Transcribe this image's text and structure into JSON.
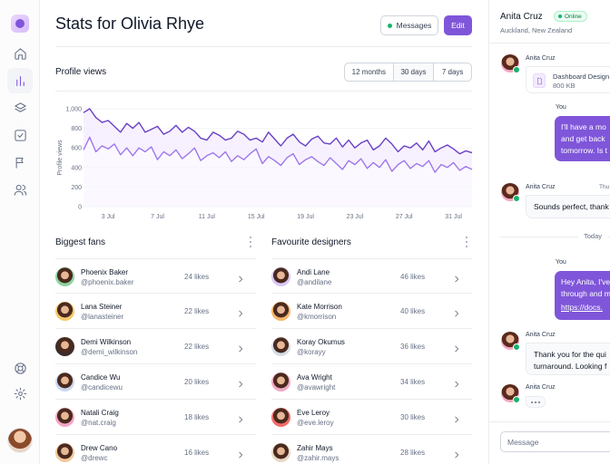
{
  "sidebar": {
    "nav": [
      {
        "icon": "home-icon"
      },
      {
        "icon": "bar-chart-icon",
        "active": true
      },
      {
        "icon": "layers-icon"
      },
      {
        "icon": "check-square-icon"
      },
      {
        "icon": "flag-icon"
      },
      {
        "icon": "users-icon"
      }
    ],
    "bottom": [
      {
        "icon": "life-buoy-icon"
      },
      {
        "icon": "settings-icon"
      }
    ]
  },
  "header": {
    "title": "Stats for Olivia Rhye",
    "messages_label": "Messages",
    "edit_label": "Edit"
  },
  "profile_views": {
    "title": "Profile views",
    "ranges": [
      "12 months",
      "30 days",
      "7 days"
    ],
    "selected_range": "30 days"
  },
  "chart_data": {
    "type": "line",
    "ylabel": "Profile views",
    "ylim": [
      0,
      1000
    ],
    "y_ticks": [
      "0",
      "200",
      "400",
      "600",
      "800",
      "1,000"
    ],
    "x_ticks": [
      "3 Jul",
      "7 Jul",
      "11 Jul",
      "15 Jul",
      "19 Jul",
      "23 Jul",
      "27 Jul",
      "31 Jul"
    ],
    "x_tick_values": [
      3,
      7,
      11,
      15,
      19,
      23,
      27,
      31
    ],
    "x": [
      1,
      1.5,
      2,
      2.5,
      3,
      3.5,
      4,
      4.5,
      5,
      5.5,
      6,
      6.5,
      7,
      7.5,
      8,
      8.5,
      9,
      9.5,
      10,
      10.5,
      11,
      11.5,
      12,
      12.5,
      13,
      13.5,
      14,
      14.5,
      15,
      15.5,
      16,
      16.5,
      17,
      17.5,
      18,
      18.5,
      19,
      19.5,
      20,
      20.5,
      21,
      21.5,
      22,
      22.5,
      23,
      23.5,
      24,
      24.5,
      25,
      25.5,
      26,
      26.5,
      27,
      27.5,
      28,
      28.5,
      29,
      29.5,
      30,
      30.5,
      31,
      31.5,
      32,
      32.5
    ],
    "series": [
      {
        "color": "#6941c6",
        "values": [
          960,
          1000,
          910,
          860,
          880,
          820,
          760,
          850,
          800,
          860,
          760,
          790,
          820,
          740,
          770,
          830,
          760,
          810,
          770,
          700,
          680,
          760,
          730,
          680,
          700,
          770,
          740,
          680,
          700,
          660,
          760,
          690,
          620,
          700,
          740,
          660,
          620,
          690,
          720,
          650,
          640,
          700,
          610,
          680,
          600,
          650,
          680,
          580,
          620,
          700,
          640,
          560,
          620,
          600,
          650,
          580,
          670,
          560,
          600,
          630,
          590,
          540,
          570,
          550
        ]
      },
      {
        "color": "#9e77ed",
        "values": [
          580,
          710,
          560,
          620,
          590,
          640,
          530,
          600,
          520,
          600,
          560,
          610,
          480,
          560,
          520,
          580,
          490,
          540,
          600,
          470,
          520,
          550,
          500,
          560,
          460,
          520,
          480,
          540,
          590,
          440,
          510,
          470,
          420,
          500,
          540,
          430,
          480,
          510,
          460,
          420,
          500,
          440,
          380,
          470,
          430,
          490,
          390,
          450,
          400,
          480,
          360,
          430,
          470,
          390,
          440,
          410,
          470,
          350,
          430,
          400,
          450,
          370,
          410,
          380
        ]
      }
    ]
  },
  "biggest_fans": {
    "title": "Biggest fans",
    "rows": [
      {
        "name": "Phoenix Baker",
        "handle": "@phoenix.baker",
        "likes": "24 likes",
        "color": "#8fd3a1"
      },
      {
        "name": "Lana Steiner",
        "handle": "@lanasteiner",
        "likes": "22 likes",
        "color": "#f5c96a"
      },
      {
        "name": "Demi Wilkinson",
        "handle": "@demi_wilkinson",
        "likes": "22 likes",
        "color": "#3b2b2b"
      },
      {
        "name": "Candice Wu",
        "handle": "@candicewu",
        "likes": "20 likes",
        "color": "#c9d8f0"
      },
      {
        "name": "Natali Craig",
        "handle": "@nat.craig",
        "likes": "18 likes",
        "color": "#f3a6c8"
      },
      {
        "name": "Drew Cano",
        "handle": "@drewc",
        "likes": "16 likes",
        "color": "#f2c9a0"
      }
    ]
  },
  "favourite_designers": {
    "title": "Favourite designers",
    "rows": [
      {
        "name": "Andi Lane",
        "handle": "@andilane",
        "likes": "46 likes",
        "color": "#d9c7f5"
      },
      {
        "name": "Kate Morrison",
        "handle": "@kmorrison",
        "likes": "40 likes",
        "color": "#f5b56a"
      },
      {
        "name": "Koray Okumus",
        "handle": "@korayy",
        "likes": "36 likes",
        "color": "#d6dde6"
      },
      {
        "name": "Ava Wright",
        "handle": "@avawright",
        "likes": "34 likes",
        "color": "#f0a8c6"
      },
      {
        "name": "Eve Leroy",
        "handle": "@eve.leroy",
        "likes": "30 likes",
        "color": "#f26b6b"
      },
      {
        "name": "Zahir Mays",
        "handle": "@zahir.mays",
        "likes": "28 likes",
        "color": "#e8d9c4"
      }
    ]
  },
  "chat": {
    "contact_name": "Anita Cruz",
    "status": "Online",
    "location": "Auckland, New Zealand",
    "sender_name": "Anita Cruz",
    "you_label": "You",
    "file_name": "Dashboard Design",
    "file_size": "800 KB",
    "out_msg1_line1": "I'll have a mo",
    "out_msg1_line2": "and get back",
    "out_msg1_line3": "tomorrow. Is t",
    "reply1_time": "Thu",
    "in_msg2": "Sounds perfect, thank",
    "today_label": "Today",
    "out_msg2_line1": "Hey Anita, I've",
    "out_msg2_line2": "through and m",
    "out_msg2_link": "https://docs.",
    "in_msg3_line1": "Thank you for the qui",
    "in_msg3_line2": "turnaround. Looking f",
    "input_placeholder": "Message"
  }
}
